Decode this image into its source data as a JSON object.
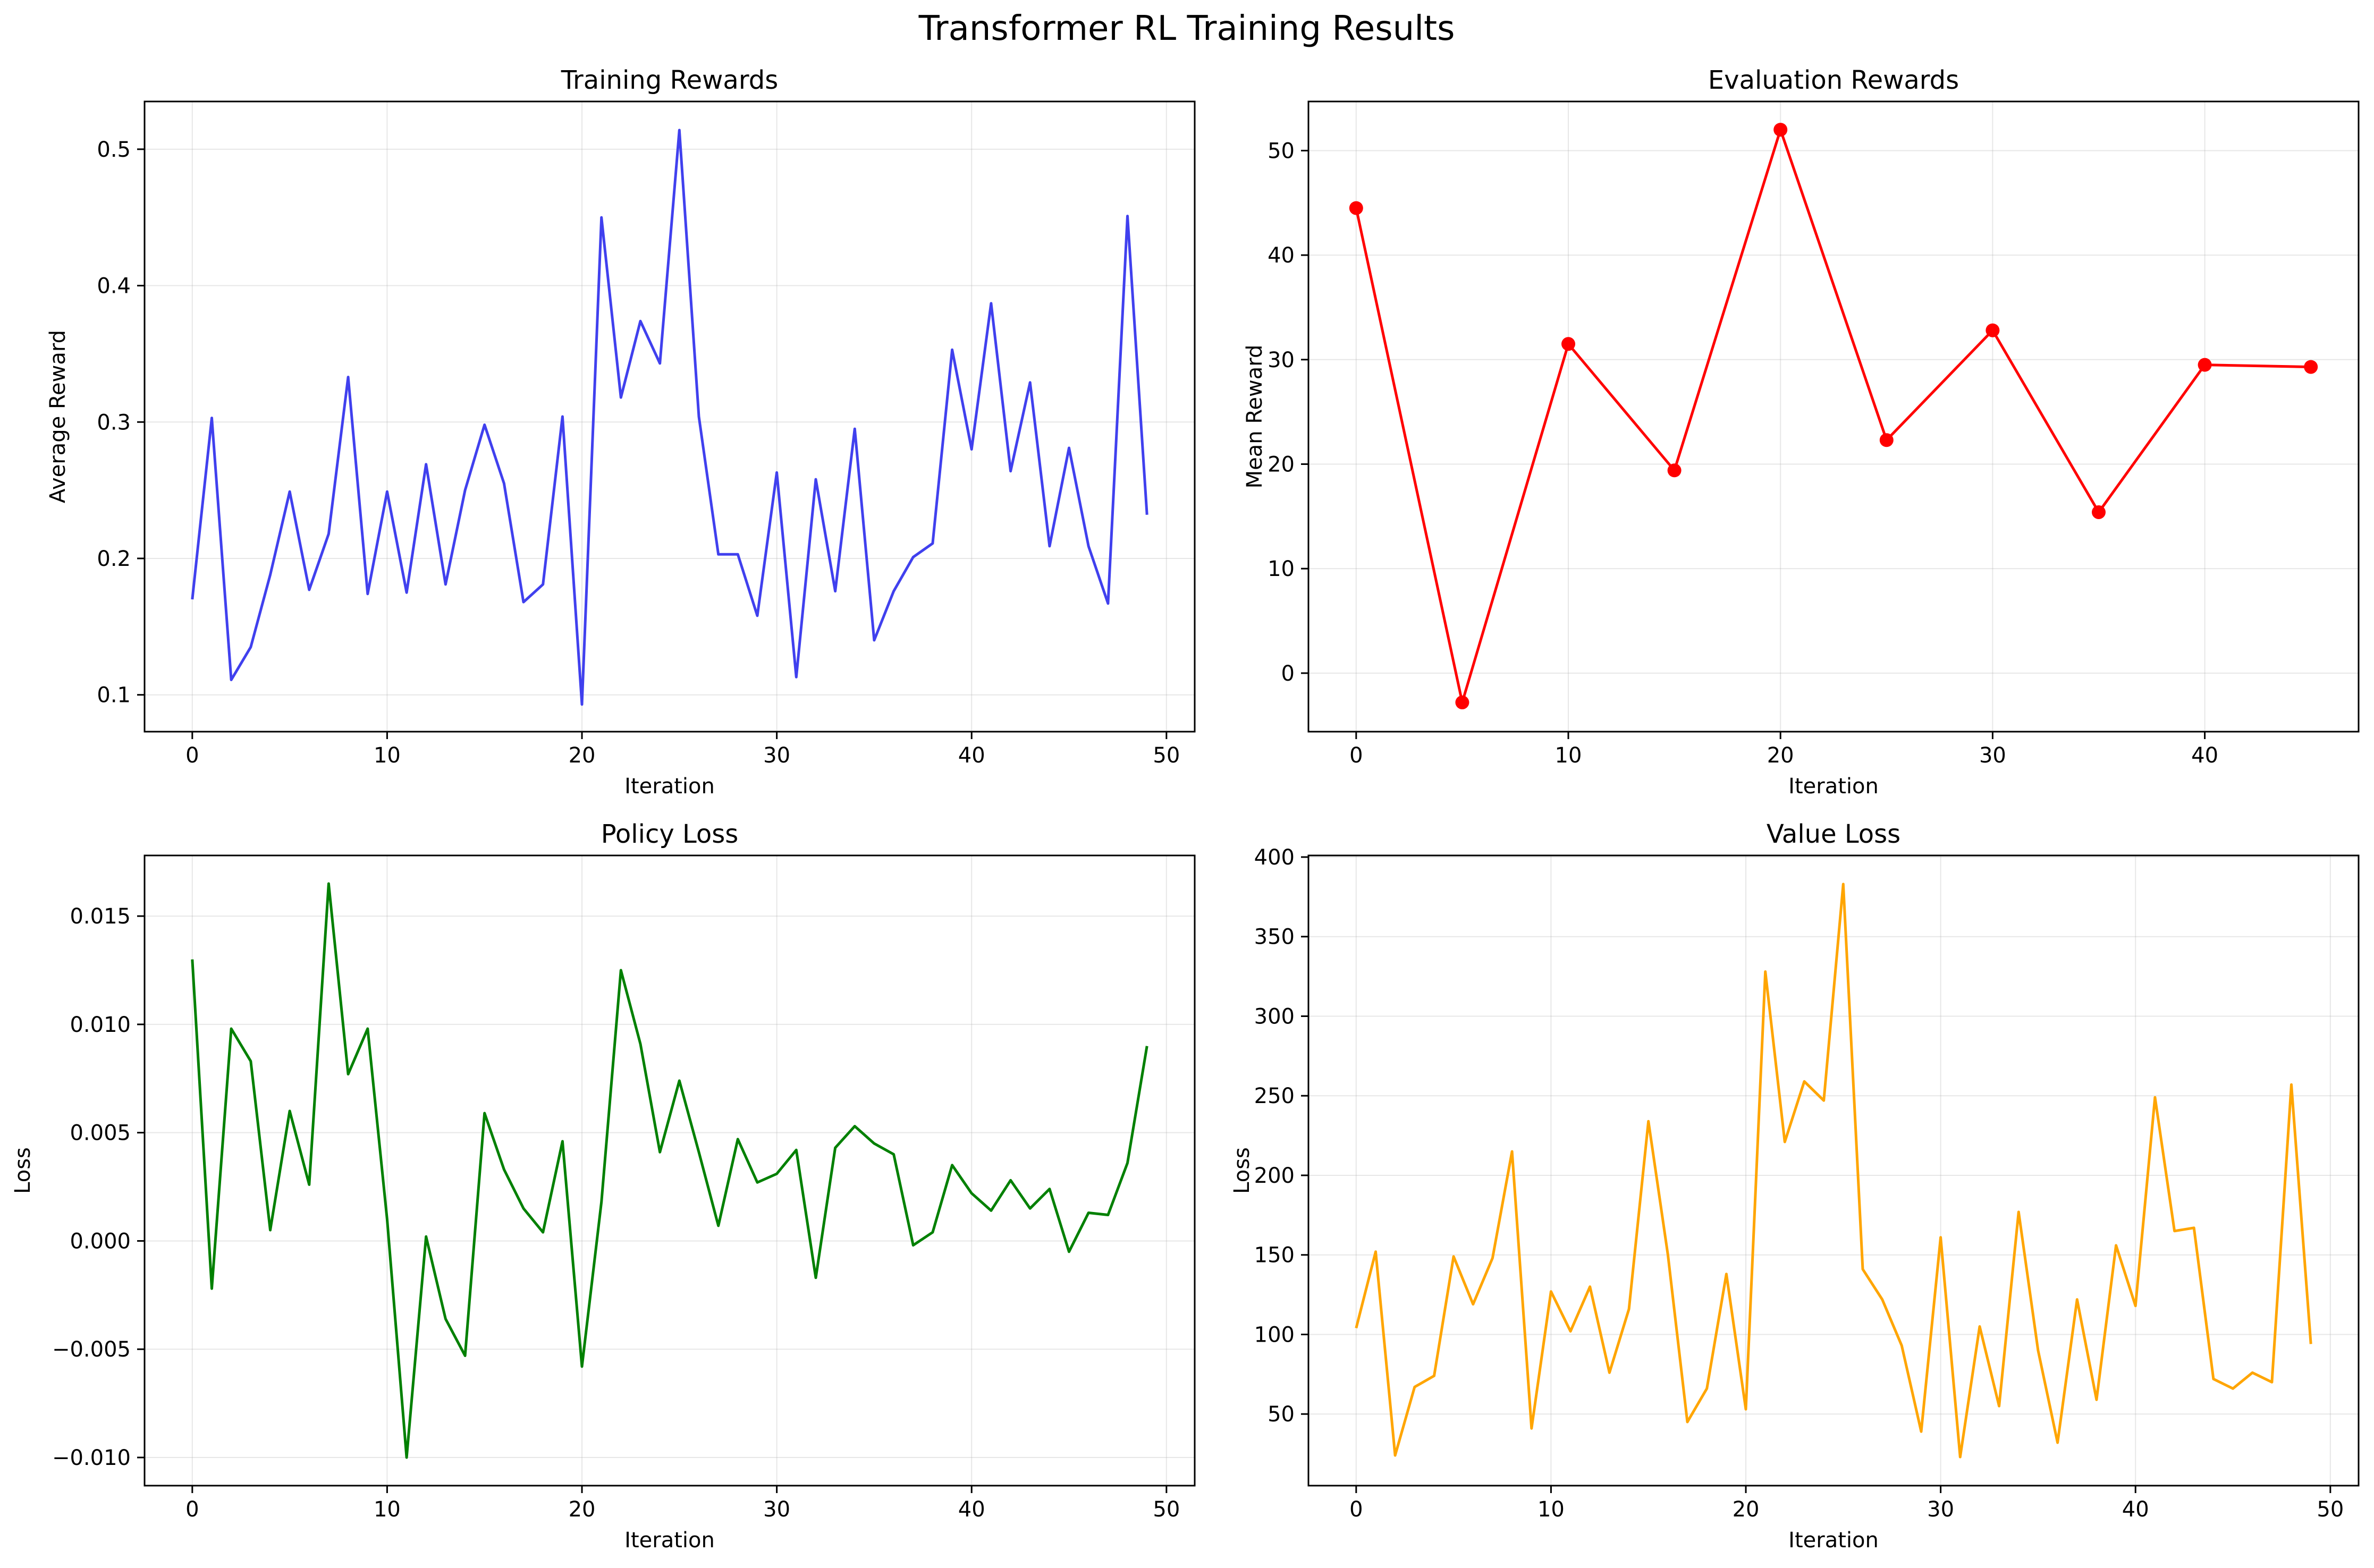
{
  "figure": {
    "title": "Transformer RL Training Results"
  },
  "chart_data": [
    {
      "type": "line",
      "title": "Training Rewards",
      "xlabel": "Iteration",
      "ylabel": "Average Reward",
      "xlim": [
        -2.45,
        51.45
      ],
      "ylim": [
        0.073,
        0.535
      ],
      "xticks": [
        0,
        10,
        20,
        30,
        40,
        50
      ],
      "yticks": [
        0.1,
        0.2,
        0.3,
        0.4,
        0.5
      ],
      "ytick_labels": [
        "0.1",
        "0.2",
        "0.3",
        "0.4",
        "0.5"
      ],
      "grid": true,
      "legend": "none",
      "series": [
        {
          "color": "#4040ee",
          "marker": "none",
          "x": [
            0,
            1,
            2,
            3,
            4,
            5,
            6,
            7,
            8,
            9,
            10,
            11,
            12,
            13,
            14,
            15,
            16,
            17,
            18,
            19,
            20,
            21,
            22,
            23,
            24,
            25,
            26,
            27,
            28,
            29,
            30,
            31,
            32,
            33,
            34,
            35,
            36,
            37,
            38,
            39,
            40,
            41,
            42,
            43,
            44,
            45,
            46,
            47,
            48,
            49
          ],
          "y": [
            0.17,
            0.303,
            0.111,
            0.135,
            0.188,
            0.249,
            0.177,
            0.218,
            0.333,
            0.174,
            0.249,
            0.175,
            0.269,
            0.181,
            0.25,
            0.298,
            0.255,
            0.168,
            0.181,
            0.304,
            0.093,
            0.45,
            0.318,
            0.374,
            0.343,
            0.514,
            0.304,
            0.203,
            0.203,
            0.158,
            0.263,
            0.113,
            0.258,
            0.176,
            0.295,
            0.14,
            0.176,
            0.201,
            0.211,
            0.353,
            0.28,
            0.387,
            0.264,
            0.329,
            0.209,
            0.281,
            0.209,
            0.167,
            0.451,
            0.232
          ]
        }
      ]
    },
    {
      "type": "line",
      "title": "Evaluation Rewards",
      "xlabel": "Iteration",
      "ylabel": "Mean Reward",
      "xlim": [
        -2.25,
        47.25
      ],
      "ylim": [
        -5.6,
        54.7
      ],
      "xticks": [
        0,
        10,
        20,
        30,
        40
      ],
      "yticks": [
        0,
        10,
        20,
        30,
        40,
        50
      ],
      "ytick_labels": [
        "0",
        "10",
        "20",
        "30",
        "40",
        "50"
      ],
      "grid": true,
      "legend": "none",
      "series": [
        {
          "color": "#ff0000",
          "marker": "circle",
          "x": [
            0,
            5,
            10,
            15,
            20,
            25,
            30,
            35,
            40,
            45
          ],
          "y": [
            44.5,
            -2.8,
            31.5,
            19.4,
            52.0,
            22.3,
            32.8,
            15.4,
            29.5,
            29.3
          ]
        }
      ]
    },
    {
      "type": "line",
      "title": "Policy Loss",
      "xlabel": "Iteration",
      "ylabel": "Loss",
      "xlim": [
        -2.45,
        51.45
      ],
      "ylim": [
        -0.0113,
        0.0178
      ],
      "xticks": [
        0,
        10,
        20,
        30,
        40,
        50
      ],
      "yticks": [
        -0.01,
        -0.005,
        0.0,
        0.005,
        0.01,
        0.015
      ],
      "ytick_labels": [
        "−0.010",
        "−0.005",
        "0.000",
        "0.005",
        "0.010",
        "0.015"
      ],
      "grid": true,
      "legend": "none",
      "series": [
        {
          "color": "#008000",
          "marker": "none",
          "x": [
            0,
            1,
            2,
            3,
            4,
            5,
            6,
            7,
            8,
            9,
            10,
            11,
            12,
            13,
            14,
            15,
            16,
            17,
            18,
            19,
            20,
            21,
            22,
            23,
            24,
            25,
            26,
            27,
            28,
            29,
            30,
            31,
            32,
            33,
            34,
            35,
            36,
            37,
            38,
            39,
            40,
            41,
            42,
            43,
            44,
            45,
            46,
            47,
            48,
            49
          ],
          "y": [
            0.013,
            -0.0022,
            0.0098,
            0.0083,
            0.0005,
            0.006,
            0.0026,
            0.0165,
            0.0077,
            0.0098,
            0.001,
            -0.01,
            0.0002,
            -0.0036,
            -0.0053,
            0.0059,
            0.0033,
            0.0015,
            0.0004,
            0.0046,
            -0.0058,
            0.0018,
            0.0125,
            0.0091,
            0.0041,
            0.0074,
            0.0041,
            0.0007,
            0.0047,
            0.0027,
            0.0031,
            0.0042,
            -0.0017,
            0.0043,
            0.0053,
            0.0045,
            0.004,
            -0.0002,
            0.0004,
            0.0035,
            0.0022,
            0.0014,
            0.0028,
            0.0015,
            0.0024,
            -0.0005,
            0.0013,
            0.0012,
            0.0036,
            0.009
          ]
        }
      ]
    },
    {
      "type": "line",
      "title": "Value Loss",
      "xlabel": "Iteration",
      "ylabel": "Loss",
      "xlim": [
        -2.45,
        51.45
      ],
      "ylim": [
        5.0,
        401.0
      ],
      "xticks": [
        0,
        10,
        20,
        30,
        40,
        50
      ],
      "yticks": [
        50,
        100,
        150,
        200,
        250,
        300,
        350,
        400
      ],
      "ytick_labels": [
        "50",
        "100",
        "150",
        "200",
        "250",
        "300",
        "350",
        "400"
      ],
      "grid": true,
      "legend": "none",
      "series": [
        {
          "color": "#ffa500",
          "marker": "none",
          "x": [
            0,
            1,
            2,
            3,
            4,
            5,
            6,
            7,
            8,
            9,
            10,
            11,
            12,
            13,
            14,
            15,
            16,
            17,
            18,
            19,
            20,
            21,
            22,
            23,
            24,
            25,
            26,
            27,
            28,
            29,
            30,
            31,
            32,
            33,
            34,
            35,
            36,
            37,
            38,
            39,
            40,
            41,
            42,
            43,
            44,
            45,
            46,
            47,
            48,
            49
          ],
          "y": [
            104,
            152,
            24,
            67,
            74,
            149,
            119,
            148,
            215,
            41,
            127,
            102,
            130,
            76,
            116,
            234,
            150,
            45,
            66,
            138,
            53,
            328,
            221,
            259,
            247,
            383,
            141,
            122,
            93,
            39,
            161,
            23,
            105,
            55,
            177,
            90,
            32,
            122,
            59,
            156,
            118,
            249,
            165,
            167,
            72,
            66,
            76,
            70,
            257,
            94
          ]
        }
      ]
    }
  ]
}
